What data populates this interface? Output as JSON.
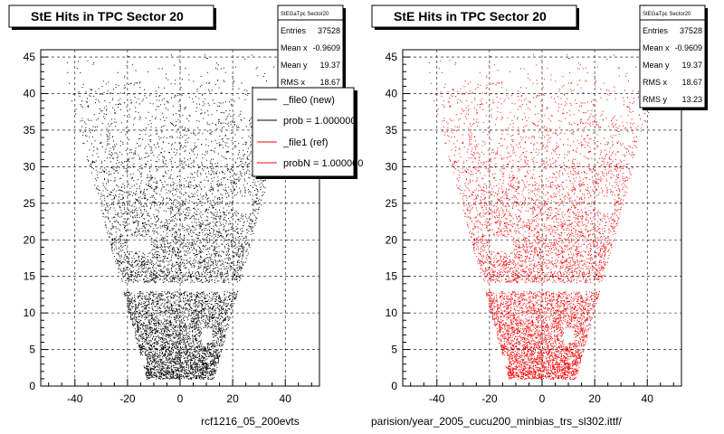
{
  "colors": {
    "ref": "#000000",
    "new": "#ff0000",
    "grid": "#000000",
    "frame": "#000000"
  },
  "captions": {
    "left": "rcf1216_05_200evts",
    "right": "parision/year_2005_cucu200_minbias_trs_sl302.ittf/"
  },
  "legend": {
    "entries": [
      {
        "label": "_file0 (new)",
        "color": "#000000"
      },
      {
        "label": "prob = 1.000000",
        "color": "#000000"
      },
      {
        "label": "_file1 (ref)",
        "color": "#ff0000"
      },
      {
        "label": "probN = 1.000000",
        "color": "#ff0000"
      }
    ]
  },
  "chart_data": [
    {
      "type": "scatter",
      "title": "StE Hits in TPC Sector 20",
      "xlabel": "",
      "ylabel": "",
      "xlim": [
        -53,
        53
      ],
      "ylim": [
        0,
        46
      ],
      "xticks": [
        -40,
        -20,
        0,
        20,
        40
      ],
      "yticks": [
        0,
        5,
        10,
        15,
        20,
        25,
        30,
        35,
        40,
        45
      ],
      "ytick_labels": [
        "0",
        "5",
        "10",
        "15",
        "20",
        "25",
        "30",
        "35",
        "40",
        "45"
      ],
      "grid": true,
      "color": "#000000",
      "stats": {
        "name": "StEGaTpc Sector20",
        "rows": [
          [
            "Entries",
            "37528"
          ],
          [
            "Mean x",
            "-0.9609"
          ],
          [
            "Mean y",
            "19.37"
          ],
          [
            "RMS x",
            "18.67"
          ]
        ]
      }
    },
    {
      "type": "scatter",
      "title": "StE Hits in TPC Sector 20",
      "xlabel": "",
      "ylabel": "",
      "xlim": [
        -53,
        53
      ],
      "ylim": [
        0,
        46
      ],
      "xticks": [
        -40,
        -20,
        0,
        20,
        40
      ],
      "yticks": [
        0,
        5,
        10,
        15,
        20,
        25,
        30,
        35,
        40,
        45
      ],
      "ytick_labels": [
        "0",
        "5",
        "10",
        "15",
        "20",
        "25",
        "30",
        "35",
        "40",
        "45"
      ],
      "grid": true,
      "color": "#ff0000",
      "stats": {
        "name": "StEGaTpc Sector20",
        "rows": [
          [
            "Entries",
            "37528"
          ],
          [
            "Mean x",
            "-0.9609"
          ],
          [
            "Mean y",
            "19.37"
          ],
          [
            "RMS x",
            "18.67"
          ],
          [
            "RMS y",
            "13.23"
          ]
        ]
      }
    }
  ]
}
